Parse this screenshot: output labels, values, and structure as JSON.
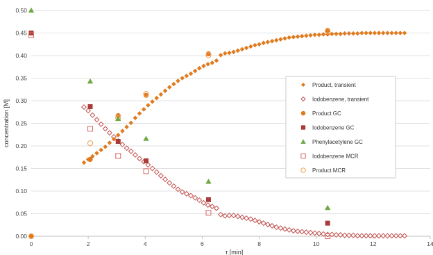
{
  "chart_data": {
    "type": "scatter",
    "title": "",
    "xlabel": "τ [min]",
    "ylabel": "concentration [M]",
    "xlim": [
      0,
      14
    ],
    "ylim": [
      0,
      0.5
    ],
    "x_ticks": [
      "0",
      "2",
      "4",
      "6",
      "8",
      "10",
      "12",
      "14"
    ],
    "y_ticks": [
      "0.00",
      "0.05",
      "0.10",
      "0.15",
      "0.20",
      "0.25",
      "0.30",
      "0.35",
      "0.40",
      "0.45",
      "0.50"
    ],
    "grid": "horizontal",
    "legend_position": "right",
    "series": [
      {
        "name": "Product, transient",
        "marker": "diamond-filled",
        "color": "#E07A1F",
        "x": [
          1.85,
          2.0,
          2.15,
          2.3,
          2.45,
          2.6,
          2.75,
          2.9,
          3.05,
          3.2,
          3.35,
          3.5,
          3.65,
          3.8,
          3.95,
          4.1,
          4.25,
          4.4,
          4.55,
          4.7,
          4.85,
          5.0,
          5.15,
          5.3,
          5.45,
          5.6,
          5.75,
          5.9,
          6.05,
          6.2,
          6.35,
          6.5,
          6.65,
          6.8,
          6.95,
          7.1,
          7.25,
          7.4,
          7.55,
          7.7,
          7.85,
          8.0,
          8.15,
          8.3,
          8.45,
          8.6,
          8.75,
          8.9,
          9.05,
          9.2,
          9.35,
          9.5,
          9.65,
          9.8,
          9.95,
          10.1,
          10.25,
          10.4,
          10.55,
          10.7,
          10.85,
          11.0,
          11.15,
          11.3,
          11.45,
          11.6,
          11.75,
          11.9,
          12.05,
          12.2,
          12.35,
          12.5,
          12.65,
          12.8,
          12.95,
          13.1
        ],
        "y": [
          0.163,
          0.17,
          0.177,
          0.184,
          0.191,
          0.198,
          0.207,
          0.215,
          0.224,
          0.233,
          0.242,
          0.251,
          0.262,
          0.272,
          0.281,
          0.29,
          0.298,
          0.306,
          0.314,
          0.322,
          0.33,
          0.337,
          0.344,
          0.35,
          0.355,
          0.36,
          0.366,
          0.372,
          0.377,
          0.381,
          0.384,
          0.389,
          0.401,
          0.405,
          0.406,
          0.408,
          0.411,
          0.414,
          0.417,
          0.42,
          0.423,
          0.425,
          0.428,
          0.43,
          0.432,
          0.434,
          0.436,
          0.438,
          0.44,
          0.441,
          0.442,
          0.443,
          0.444,
          0.445,
          0.446,
          0.446,
          0.447,
          0.447,
          0.448,
          0.448,
          0.448,
          0.449,
          0.449,
          0.449,
          0.449,
          0.45,
          0.45,
          0.45,
          0.45,
          0.45,
          0.45,
          0.45,
          0.45,
          0.45,
          0.45,
          0.45
        ]
      },
      {
        "name": "Iodobenzene, transient",
        "marker": "diamond-open",
        "color": "#C0504D",
        "x": [
          1.85,
          2.0,
          2.15,
          2.3,
          2.45,
          2.6,
          2.75,
          2.9,
          3.05,
          3.2,
          3.35,
          3.5,
          3.65,
          3.8,
          3.95,
          4.1,
          4.25,
          4.4,
          4.55,
          4.7,
          4.85,
          5.0,
          5.15,
          5.3,
          5.45,
          5.6,
          5.75,
          5.9,
          6.05,
          6.2,
          6.35,
          6.5,
          6.65,
          6.8,
          6.95,
          7.1,
          7.25,
          7.4,
          7.55,
          7.7,
          7.85,
          8.0,
          8.15,
          8.3,
          8.45,
          8.6,
          8.75,
          8.9,
          9.05,
          9.2,
          9.35,
          9.5,
          9.65,
          9.8,
          9.95,
          10.1,
          10.25,
          10.4,
          10.55,
          10.7,
          10.85,
          11.0,
          11.15,
          11.3,
          11.45,
          11.6,
          11.75,
          11.9,
          12.05,
          12.2,
          12.35,
          12.5,
          12.65,
          12.8,
          12.95,
          13.1
        ],
        "y": [
          0.286,
          0.278,
          0.268,
          0.258,
          0.248,
          0.238,
          0.229,
          0.22,
          0.211,
          0.203,
          0.195,
          0.188,
          0.18,
          0.172,
          0.165,
          0.158,
          0.15,
          0.142,
          0.134,
          0.126,
          0.118,
          0.111,
          0.104,
          0.098,
          0.094,
          0.09,
          0.085,
          0.08,
          0.074,
          0.069,
          0.066,
          0.062,
          0.048,
          0.045,
          0.046,
          0.046,
          0.044,
          0.042,
          0.04,
          0.038,
          0.035,
          0.032,
          0.029,
          0.026,
          0.023,
          0.02,
          0.018,
          0.016,
          0.014,
          0.012,
          0.011,
          0.01,
          0.009,
          0.008,
          0.007,
          0.006,
          0.005,
          0.004,
          0.004,
          0.003,
          0.003,
          0.002,
          0.002,
          0.002,
          0.001,
          0.001,
          0.001,
          0.001,
          0.001,
          0.001,
          0.001,
          0.001,
          0.001,
          0.001,
          0.001,
          0.001
        ]
      },
      {
        "name": "Product GC",
        "marker": "circle-filled",
        "color": "#E07A1F",
        "x": [
          0,
          2.07,
          3.05,
          4.03,
          6.22,
          10.4
        ],
        "y": [
          0.0,
          0.17,
          0.267,
          0.312,
          0.404,
          0.456
        ]
      },
      {
        "name": "Iodobenzene GC",
        "marker": "square-filled",
        "color": "#A93C3A",
        "x": [
          0,
          2.07,
          3.05,
          4.03,
          6.22,
          10.4
        ],
        "y": [
          0.45,
          0.287,
          0.21,
          0.167,
          0.081,
          0.029
        ]
      },
      {
        "name": "Phenylacetylene GC",
        "marker": "triangle-filled",
        "color": "#70A845",
        "x": [
          0,
          2.07,
          3.05,
          4.03,
          6.22,
          10.4
        ],
        "y": [
          0.5,
          0.343,
          0.26,
          0.216,
          0.121,
          0.063
        ]
      },
      {
        "name": "Iodobenzene MCR",
        "marker": "square-open",
        "color": "#D9726F",
        "x": [
          0,
          2.07,
          3.05,
          4.03,
          6.22,
          10.4
        ],
        "y": [
          0.445,
          0.238,
          0.178,
          0.144,
          0.052,
          0.0
        ]
      },
      {
        "name": "Product MCR",
        "marker": "circle-open",
        "color": "#F0A35A",
        "x": [
          0,
          2.07,
          3.05,
          4.03,
          6.22,
          10.4
        ],
        "y": [
          0.0,
          0.206,
          0.262,
          0.315,
          0.401,
          0.454
        ]
      }
    ]
  }
}
